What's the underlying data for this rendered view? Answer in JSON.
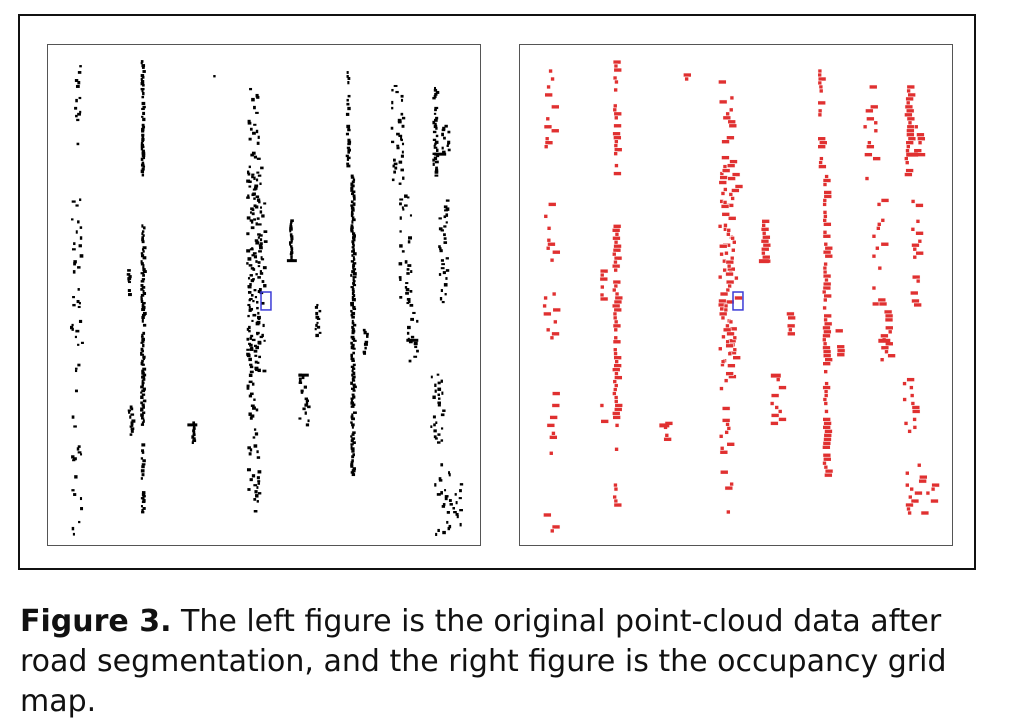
{
  "figure": {
    "label": "Figure 3.",
    "caption": " The left figure is the original point-cloud data after road segmentation, and the right figure is the occupancy grid map.",
    "left_panel": {
      "point_color": "#000000",
      "marker_color": "#3b3bd6"
    },
    "right_panel": {
      "point_color": "#e03030",
      "marker_color": "#3b3bd6"
    }
  }
}
